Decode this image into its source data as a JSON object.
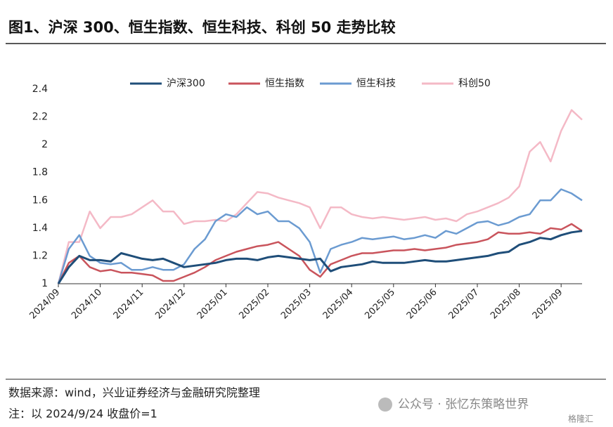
{
  "chart_data": {
    "type": "line",
    "title": "图1、沪深 300、恒生指数、恒生科技、科创 50 走势比较",
    "source": "数据来源：wind，兴业证券经济与金融研究院整理",
    "note": "注：以 2024/9/24 收盘价=1",
    "watermark": "公众号 · 张忆东策略世界",
    "watermark_logo": "格隆汇",
    "categories": [
      "2024/09",
      null,
      null,
      null,
      "2024/10",
      null,
      null,
      null,
      "2024/11",
      null,
      null,
      null,
      "2024/12",
      null,
      null,
      null,
      "2025/01",
      null,
      null,
      null,
      "2025/02",
      null,
      null,
      null,
      "2025/03",
      null,
      null,
      null,
      "2025/04",
      null,
      null,
      null,
      "2025/05",
      null,
      null,
      null,
      "2025/06",
      null,
      null,
      null,
      "2025/07",
      null,
      null,
      null,
      "2025/08",
      null,
      null,
      null,
      "2025/09",
      null,
      null
    ],
    "series": [
      {
        "name": "沪深300",
        "color": "#1f4e79",
        "values": [
          1.0,
          1.12,
          1.2,
          1.17,
          1.17,
          1.16,
          1.22,
          1.2,
          1.18,
          1.17,
          1.18,
          1.15,
          1.12,
          1.13,
          1.14,
          1.15,
          1.17,
          1.18,
          1.18,
          1.17,
          1.19,
          1.2,
          1.19,
          1.18,
          1.17,
          1.18,
          1.09,
          1.12,
          1.13,
          1.14,
          1.16,
          1.15,
          1.15,
          1.15,
          1.16,
          1.17,
          1.16,
          1.16,
          1.17,
          1.18,
          1.19,
          1.2,
          1.22,
          1.23,
          1.28,
          1.3,
          1.33,
          1.32,
          1.35,
          1.37,
          1.38
        ]
      },
      {
        "name": "恒生指数",
        "color": "#c9545c",
        "values": [
          1.0,
          1.15,
          1.2,
          1.12,
          1.09,
          1.1,
          1.08,
          1.08,
          1.07,
          1.06,
          1.02,
          1.02,
          1.05,
          1.08,
          1.12,
          1.17,
          1.2,
          1.23,
          1.25,
          1.27,
          1.28,
          1.3,
          1.25,
          1.2,
          1.1,
          1.05,
          1.14,
          1.17,
          1.2,
          1.22,
          1.22,
          1.23,
          1.24,
          1.24,
          1.25,
          1.24,
          1.25,
          1.26,
          1.28,
          1.29,
          1.3,
          1.32,
          1.37,
          1.36,
          1.36,
          1.37,
          1.36,
          1.4,
          1.39,
          1.43,
          1.38
        ]
      },
      {
        "name": "恒生科技",
        "color": "#6b9bd1",
        "values": [
          1.0,
          1.25,
          1.35,
          1.2,
          1.15,
          1.14,
          1.15,
          1.1,
          1.1,
          1.12,
          1.1,
          1.1,
          1.14,
          1.25,
          1.32,
          1.45,
          1.5,
          1.48,
          1.55,
          1.5,
          1.52,
          1.45,
          1.45,
          1.4,
          1.3,
          1.08,
          1.25,
          1.28,
          1.3,
          1.33,
          1.32,
          1.33,
          1.34,
          1.32,
          1.33,
          1.35,
          1.33,
          1.38,
          1.36,
          1.4,
          1.44,
          1.45,
          1.42,
          1.44,
          1.48,
          1.5,
          1.6,
          1.6,
          1.68,
          1.65,
          1.6
        ]
      },
      {
        "name": "科创50",
        "color": "#f4b9c6",
        "values": [
          1.0,
          1.3,
          1.3,
          1.52,
          1.4,
          1.48,
          1.48,
          1.5,
          1.55,
          1.6,
          1.52,
          1.52,
          1.43,
          1.45,
          1.45,
          1.46,
          1.45,
          1.5,
          1.58,
          1.66,
          1.65,
          1.62,
          1.6,
          1.58,
          1.55,
          1.4,
          1.55,
          1.55,
          1.5,
          1.48,
          1.47,
          1.48,
          1.47,
          1.46,
          1.47,
          1.48,
          1.46,
          1.47,
          1.45,
          1.5,
          1.52,
          1.55,
          1.58,
          1.62,
          1.7,
          1.95,
          2.02,
          1.88,
          2.1,
          2.25,
          2.18
        ]
      }
    ],
    "ylim": [
      1,
      2.4
    ],
    "yticks": [
      1,
      1.2,
      1.4,
      1.6,
      1.8,
      2,
      2.2,
      2.4
    ],
    "grid": false,
    "legend": "top"
  }
}
